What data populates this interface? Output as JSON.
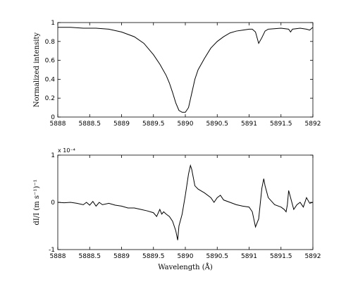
{
  "chart_data": [
    {
      "type": "line",
      "title": "",
      "xlabel": "",
      "ylabel": "Normalized intensity",
      "xlim": [
        5888,
        5892
      ],
      "ylim": [
        0,
        1
      ],
      "x_ticks": [
        "5888",
        "5888.5",
        "5889",
        "5889.5",
        "5890",
        "5890.5",
        "5891",
        "5891.5",
        "5892"
      ],
      "y_ticks": [
        "0",
        "0.2",
        "0.4",
        "0.6",
        "0.8",
        "1"
      ],
      "grid": false,
      "series": [
        {
          "color": "#000000",
          "x": [
            5888.0,
            5888.2,
            5888.4,
            5888.6,
            5888.8,
            5889.0,
            5889.2,
            5889.35,
            5889.5,
            5889.6,
            5889.7,
            5889.75,
            5889.8,
            5889.85,
            5889.9,
            5889.95,
            5890.0,
            5890.05,
            5890.1,
            5890.15,
            5890.2,
            5890.3,
            5890.4,
            5890.5,
            5890.6,
            5890.7,
            5890.8,
            5890.9,
            5891.0,
            5891.05,
            5891.1,
            5891.15,
            5891.2,
            5891.25,
            5891.3,
            5891.5,
            5891.62,
            5891.65,
            5891.68,
            5891.8,
            5891.9,
            5891.95,
            5892.0
          ],
          "y": [
            0.95,
            0.95,
            0.94,
            0.94,
            0.93,
            0.9,
            0.85,
            0.78,
            0.66,
            0.56,
            0.44,
            0.36,
            0.26,
            0.15,
            0.07,
            0.05,
            0.05,
            0.1,
            0.25,
            0.4,
            0.5,
            0.62,
            0.73,
            0.8,
            0.85,
            0.89,
            0.91,
            0.92,
            0.93,
            0.93,
            0.9,
            0.78,
            0.84,
            0.91,
            0.93,
            0.94,
            0.93,
            0.9,
            0.93,
            0.94,
            0.93,
            0.92,
            0.95
          ]
        }
      ]
    },
    {
      "type": "line",
      "title": "",
      "xlabel": "Wavelength (Å)",
      "ylabel": "dI/I (m s⁻¹)⁻¹",
      "y_scale_label": "x 10⁻⁴",
      "xlim": [
        5888,
        5892
      ],
      "ylim": [
        -1,
        1
      ],
      "x_ticks": [
        "5888",
        "5888.5",
        "5889",
        "5889.5",
        "5890",
        "5890.5",
        "5891",
        "5891.5",
        "5892"
      ],
      "y_ticks": [
        "-1",
        "0",
        "1"
      ],
      "grid": false,
      "series": [
        {
          "color": "#000000",
          "x": [
            5888.0,
            5888.1,
            5888.2,
            5888.3,
            5888.4,
            5888.45,
            5888.5,
            5888.55,
            5888.6,
            5888.65,
            5888.7,
            5888.8,
            5888.9,
            5889.0,
            5889.1,
            5889.2,
            5889.3,
            5889.4,
            5889.5,
            5889.55,
            5889.6,
            5889.63,
            5889.66,
            5889.7,
            5889.75,
            5889.8,
            5889.85,
            5889.88,
            5889.9,
            5889.95,
            5890.0,
            5890.05,
            5890.08,
            5890.1,
            5890.15,
            5890.2,
            5890.3,
            5890.4,
            5890.45,
            5890.5,
            5890.55,
            5890.6,
            5890.7,
            5890.8,
            5890.9,
            5891.0,
            5891.05,
            5891.1,
            5891.15,
            5891.2,
            5891.23,
            5891.25,
            5891.3,
            5891.4,
            5891.5,
            5891.55,
            5891.58,
            5891.6,
            5891.62,
            5891.65,
            5891.7,
            5891.75,
            5891.8,
            5891.85,
            5891.9,
            5891.95,
            5892.0
          ],
          "y": [
            0.0,
            -0.01,
            0.0,
            -0.02,
            -0.05,
            0.0,
            -0.06,
            0.02,
            -0.08,
            0.0,
            -0.05,
            -0.02,
            -0.06,
            -0.08,
            -0.12,
            -0.12,
            -0.15,
            -0.18,
            -0.22,
            -0.3,
            -0.15,
            -0.25,
            -0.2,
            -0.25,
            -0.3,
            -0.4,
            -0.6,
            -0.8,
            -0.5,
            -0.25,
            0.15,
            0.6,
            0.78,
            0.7,
            0.35,
            0.28,
            0.2,
            0.1,
            0.0,
            0.1,
            0.15,
            0.05,
            0.0,
            -0.05,
            -0.08,
            -0.1,
            -0.2,
            -0.52,
            -0.35,
            0.3,
            0.5,
            0.35,
            0.1,
            -0.05,
            -0.1,
            -0.15,
            -0.2,
            -0.05,
            0.25,
            0.1,
            -0.15,
            -0.05,
            0.0,
            -0.1,
            0.1,
            -0.02,
            0.0
          ]
        }
      ]
    }
  ]
}
